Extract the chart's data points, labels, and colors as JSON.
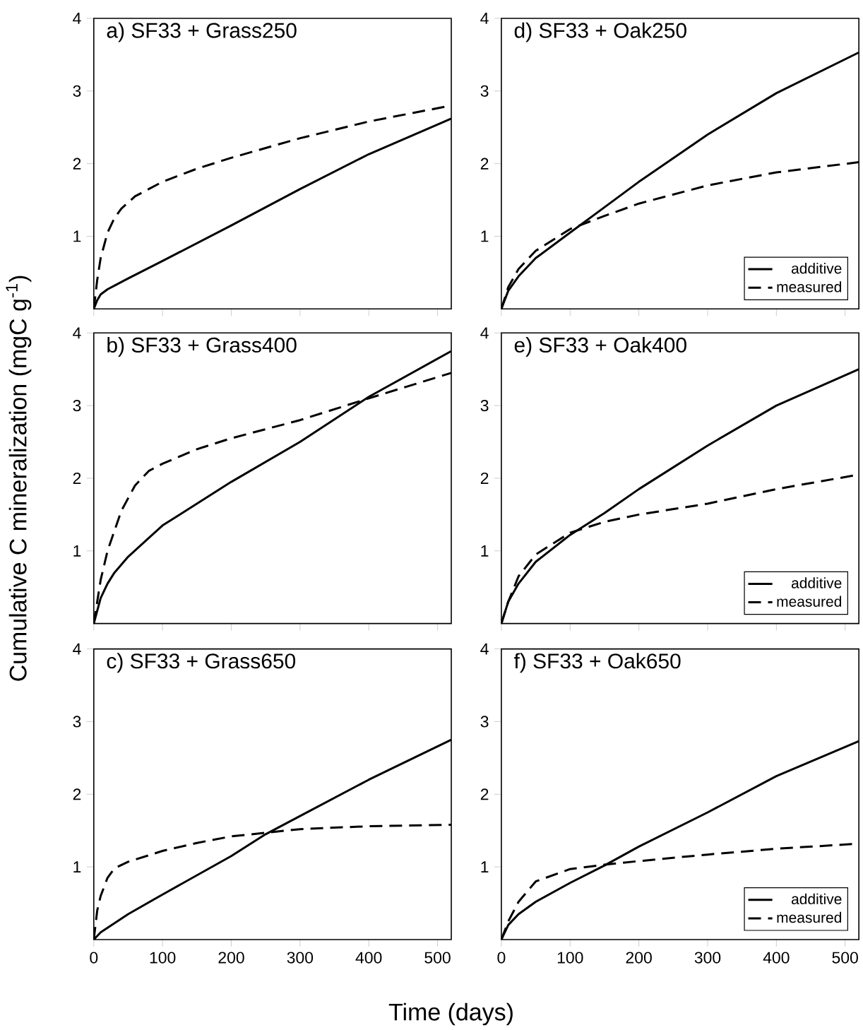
{
  "chart_data": [
    {
      "type": "line",
      "title": "a) SF33 + Grass250",
      "xlim": [
        0,
        520
      ],
      "xticks": [
        0,
        100,
        200,
        300,
        400,
        500
      ],
      "ylim": [
        0,
        4
      ],
      "yticks": [
        1,
        2,
        3,
        4
      ],
      "tick_labels": "y",
      "series": [
        {
          "color": "#000000",
          "line_style": "solid",
          "x": [
            0,
            5,
            10,
            20,
            30,
            50,
            100,
            200,
            300,
            400,
            520
          ],
          "values": [
            0,
            0.12,
            0.2,
            0.27,
            0.32,
            0.42,
            0.66,
            1.15,
            1.65,
            2.13,
            2.62
          ]
        },
        {
          "color": "#000000",
          "line_style": "dashed",
          "x": [
            0,
            5,
            10,
            20,
            30,
            40,
            60,
            100,
            150,
            200,
            300,
            400,
            520
          ],
          "values": [
            0,
            0.4,
            0.7,
            1.05,
            1.25,
            1.38,
            1.55,
            1.75,
            1.93,
            2.08,
            2.35,
            2.58,
            2.8
          ]
        }
      ]
    },
    {
      "type": "line",
      "title": "d) SF33 + Oak250",
      "xlim": [
        0,
        520
      ],
      "xticks": [
        0,
        100,
        200,
        300,
        400,
        500
      ],
      "ylim": [
        0,
        4
      ],
      "yticks": [
        1,
        2,
        3,
        4
      ],
      "tick_labels": "y",
      "legend": "bottom right",
      "series": [
        {
          "name": "additive",
          "color": "#000000",
          "line_style": "solid",
          "x": [
            0,
            10,
            25,
            50,
            100,
            150,
            200,
            300,
            400,
            520
          ],
          "values": [
            0,
            0.25,
            0.45,
            0.7,
            1.05,
            1.4,
            1.75,
            2.4,
            2.97,
            3.53
          ]
        },
        {
          "name": "measured",
          "color": "#000000",
          "line_style": "dashed",
          "x": [
            0,
            10,
            25,
            50,
            100,
            150,
            200,
            300,
            400,
            520
          ],
          "values": [
            0,
            0.3,
            0.55,
            0.8,
            1.1,
            1.28,
            1.45,
            1.7,
            1.88,
            2.02
          ]
        }
      ]
    },
    {
      "type": "line",
      "title": "b) SF33 + Grass400",
      "ylabel": "Cumulative C mineralization (mgC g$^{-1}$)",
      "xlim": [
        0,
        520
      ],
      "xticks": [
        0,
        100,
        200,
        300,
        400,
        500
      ],
      "ylim": [
        0,
        4
      ],
      "yticks": [
        1,
        2,
        3,
        4
      ],
      "tick_labels": "y",
      "series": [
        {
          "color": "#000000",
          "line_style": "solid",
          "x": [
            0,
            10,
            20,
            30,
            50,
            100,
            200,
            300,
            400,
            520
          ],
          "values": [
            0,
            0.35,
            0.55,
            0.7,
            0.92,
            1.35,
            1.95,
            2.5,
            3.12,
            3.75
          ]
        },
        {
          "color": "#000000",
          "line_style": "dashed",
          "x": [
            0,
            10,
            20,
            40,
            60,
            80,
            100,
            150,
            200,
            300,
            400,
            520
          ],
          "values": [
            0,
            0.6,
            1.0,
            1.55,
            1.9,
            2.1,
            2.2,
            2.4,
            2.55,
            2.8,
            3.1,
            3.45
          ]
        }
      ]
    },
    {
      "type": "line",
      "title": "e) SF33 + Oak400",
      "xlim": [
        0,
        520
      ],
      "xticks": [
        0,
        100,
        200,
        300,
        400,
        500
      ],
      "ylim": [
        0,
        4
      ],
      "yticks": [
        1,
        2,
        3,
        4
      ],
      "tick_labels": "y",
      "legend": "bottom right",
      "series": [
        {
          "name": "additive",
          "color": "#000000",
          "line_style": "solid",
          "x": [
            0,
            10,
            25,
            50,
            100,
            150,
            200,
            300,
            400,
            520
          ],
          "values": [
            0,
            0.3,
            0.55,
            0.85,
            1.22,
            1.52,
            1.85,
            2.45,
            3.0,
            3.5
          ]
        },
        {
          "name": "measured",
          "color": "#000000",
          "line_style": "dashed",
          "x": [
            0,
            10,
            25,
            50,
            100,
            150,
            200,
            300,
            400,
            520
          ],
          "values": [
            0,
            0.3,
            0.65,
            0.95,
            1.25,
            1.4,
            1.5,
            1.65,
            1.85,
            2.05
          ]
        }
      ]
    },
    {
      "type": "line",
      "title": "c) SF33 + Grass650",
      "xlabel": "Time (days)",
      "xlim": [
        0,
        520
      ],
      "xticks": [
        0,
        100,
        200,
        300,
        400,
        500
      ],
      "ylim": [
        0,
        4
      ],
      "yticks": [
        1,
        2,
        3,
        4
      ],
      "series": [
        {
          "color": "#000000",
          "line_style": "solid",
          "x": [
            0,
            10,
            50,
            100,
            200,
            250,
            300,
            400,
            520
          ],
          "values": [
            0,
            0.1,
            0.35,
            0.62,
            1.15,
            1.45,
            1.7,
            2.2,
            2.75
          ]
        },
        {
          "color": "#000000",
          "line_style": "dashed",
          "x": [
            0,
            5,
            10,
            20,
            30,
            50,
            100,
            150,
            200,
            250,
            300,
            400,
            520
          ],
          "values": [
            0,
            0.4,
            0.6,
            0.85,
            0.98,
            1.07,
            1.22,
            1.33,
            1.42,
            1.47,
            1.52,
            1.56,
            1.58
          ]
        }
      ]
    },
    {
      "type": "line",
      "title": "f) SF33 + Oak650",
      "xlim": [
        0,
        520
      ],
      "xticks": [
        0,
        100,
        200,
        300,
        400,
        500
      ],
      "ylim": [
        0,
        4
      ],
      "yticks": [
        1,
        2,
        3,
        4
      ],
      "legend": "bottom right",
      "series": [
        {
          "name": "additive",
          "color": "#000000",
          "line_style": "solid",
          "x": [
            0,
            10,
            25,
            50,
            100,
            150,
            200,
            300,
            400,
            520
          ],
          "values": [
            0,
            0.2,
            0.35,
            0.52,
            0.78,
            1.02,
            1.28,
            1.75,
            2.25,
            2.73
          ]
        },
        {
          "name": "measured",
          "color": "#000000",
          "line_style": "dashed",
          "x": [
            0,
            10,
            25,
            50,
            100,
            150,
            200,
            300,
            400,
            520
          ],
          "values": [
            0,
            0.25,
            0.52,
            0.8,
            0.97,
            1.03,
            1.08,
            1.17,
            1.25,
            1.32
          ]
        }
      ]
    }
  ]
}
